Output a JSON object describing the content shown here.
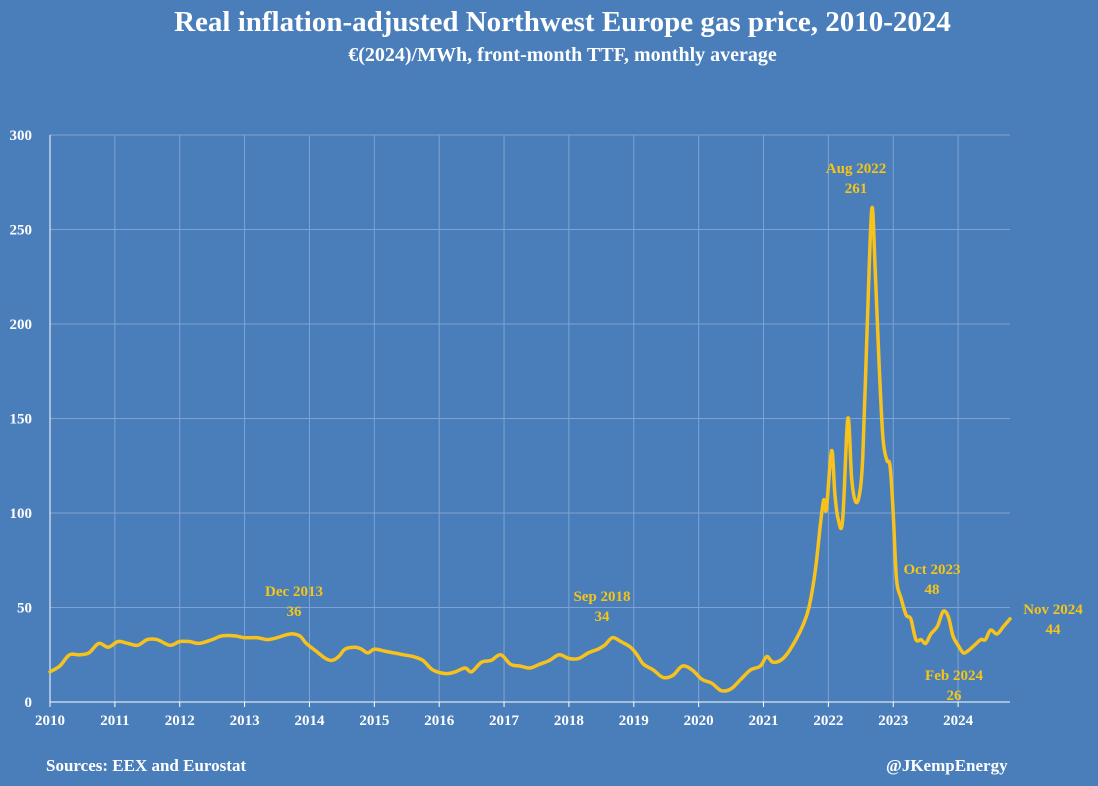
{
  "title": "Real inflation-adjusted Northwest Europe gas price, 2010-2024",
  "subtitle": "€(2024)/MWh, front-month TTF, monthly average",
  "footer": {
    "source": "Sources: EEX and Eurostat",
    "handle": "@JKempEnergy"
  },
  "colors": {
    "background": "#4a7ebb",
    "line": "#f7c21b",
    "annotation": "#f5c518",
    "grid": "#7ea3d2"
  },
  "chart_data": {
    "type": "line",
    "title": "Real inflation-adjusted Northwest Europe gas price, 2010-2024",
    "subtitle": "€(2024)/MWh, front-month TTF, monthly average",
    "xlabel": "",
    "ylabel": "",
    "ylim": [
      0,
      300
    ],
    "xlim": [
      2010,
      2024.8
    ],
    "grid": true,
    "x_ticks": [
      "2010",
      "2011",
      "2012",
      "2013",
      "2014",
      "2015",
      "2016",
      "2017",
      "2018",
      "2019",
      "2020",
      "2021",
      "2022",
      "2023",
      "2024"
    ],
    "y_ticks": [
      "0",
      "50",
      "100",
      "150",
      "200",
      "250",
      "300"
    ],
    "series": [
      {
        "points": [
          [
            2010.0,
            16
          ],
          [
            2010.15,
            19
          ],
          [
            2010.3,
            25
          ],
          [
            2010.45,
            25
          ],
          [
            2010.6,
            26
          ],
          [
            2010.75,
            31
          ],
          [
            2010.9,
            29
          ],
          [
            2011.05,
            32
          ],
          [
            2011.2,
            31
          ],
          [
            2011.35,
            30
          ],
          [
            2011.5,
            33
          ],
          [
            2011.65,
            33
          ],
          [
            2011.85,
            30
          ],
          [
            2012.0,
            32
          ],
          [
            2012.15,
            32
          ],
          [
            2012.3,
            31
          ],
          [
            2012.5,
            33
          ],
          [
            2012.65,
            35
          ],
          [
            2012.85,
            35
          ],
          [
            2013.0,
            34
          ],
          [
            2013.2,
            34
          ],
          [
            2013.35,
            33
          ],
          [
            2013.5,
            34
          ],
          [
            2013.7,
            36
          ],
          [
            2013.85,
            35
          ],
          [
            2013.95,
            31
          ],
          [
            2014.1,
            27
          ],
          [
            2014.25,
            23
          ],
          [
            2014.35,
            22
          ],
          [
            2014.45,
            24
          ],
          [
            2014.55,
            28
          ],
          [
            2014.7,
            29
          ],
          [
            2014.8,
            28
          ],
          [
            2014.9,
            26
          ],
          [
            2015.0,
            28
          ],
          [
            2015.15,
            27
          ],
          [
            2015.3,
            26
          ],
          [
            2015.45,
            25
          ],
          [
            2015.6,
            24
          ],
          [
            2015.75,
            22
          ],
          [
            2015.9,
            17
          ],
          [
            2016.1,
            15
          ],
          [
            2016.25,
            16
          ],
          [
            2016.4,
            18
          ],
          [
            2016.5,
            16
          ],
          [
            2016.65,
            21
          ],
          [
            2016.8,
            22
          ],
          [
            2016.95,
            25
          ],
          [
            2017.1,
            20
          ],
          [
            2017.25,
            19
          ],
          [
            2017.4,
            18
          ],
          [
            2017.55,
            20
          ],
          [
            2017.7,
            22
          ],
          [
            2017.85,
            25
          ],
          [
            2018.0,
            23
          ],
          [
            2018.15,
            23
          ],
          [
            2018.3,
            26
          ],
          [
            2018.45,
            28
          ],
          [
            2018.55,
            30
          ],
          [
            2018.67,
            34
          ],
          [
            2018.8,
            32
          ],
          [
            2018.95,
            29
          ],
          [
            2019.05,
            25
          ],
          [
            2019.15,
            20
          ],
          [
            2019.3,
            17
          ],
          [
            2019.45,
            13
          ],
          [
            2019.6,
            14
          ],
          [
            2019.75,
            19
          ],
          [
            2019.9,
            17
          ],
          [
            2020.05,
            12
          ],
          [
            2020.2,
            10
          ],
          [
            2020.35,
            6
          ],
          [
            2020.5,
            7
          ],
          [
            2020.65,
            12
          ],
          [
            2020.8,
            17
          ],
          [
            2020.95,
            19
          ],
          [
            2021.05,
            24
          ],
          [
            2021.15,
            21
          ],
          [
            2021.3,
            23
          ],
          [
            2021.45,
            30
          ],
          [
            2021.6,
            40
          ],
          [
            2021.7,
            50
          ],
          [
            2021.8,
            70
          ],
          [
            2021.88,
            95
          ],
          [
            2021.93,
            107
          ],
          [
            2021.97,
            102
          ],
          [
            2022.05,
            133
          ],
          [
            2022.1,
            110
          ],
          [
            2022.15,
            97
          ],
          [
            2022.22,
            96
          ],
          [
            2022.3,
            150
          ],
          [
            2022.36,
            118
          ],
          [
            2022.42,
            106
          ],
          [
            2022.48,
            110
          ],
          [
            2022.53,
            130
          ],
          [
            2022.6,
            200
          ],
          [
            2022.67,
            261
          ],
          [
            2022.72,
            230
          ],
          [
            2022.78,
            180
          ],
          [
            2022.84,
            140
          ],
          [
            2022.9,
            128
          ],
          [
            2022.95,
            125
          ],
          [
            2023.0,
            100
          ],
          [
            2023.05,
            65
          ],
          [
            2023.12,
            55
          ],
          [
            2023.2,
            46
          ],
          [
            2023.27,
            44
          ],
          [
            2023.35,
            33
          ],
          [
            2023.43,
            33
          ],
          [
            2023.5,
            31
          ],
          [
            2023.58,
            36
          ],
          [
            2023.68,
            40
          ],
          [
            2023.77,
            48
          ],
          [
            2023.85,
            45
          ],
          [
            2023.92,
            35
          ],
          [
            2024.0,
            30
          ],
          [
            2024.08,
            26
          ],
          [
            2024.15,
            27
          ],
          [
            2024.25,
            30
          ],
          [
            2024.35,
            33
          ],
          [
            2024.42,
            33
          ],
          [
            2024.5,
            38
          ],
          [
            2024.6,
            36
          ],
          [
            2024.7,
            40
          ],
          [
            2024.8,
            44
          ]
        ]
      }
    ],
    "annotations": [
      {
        "label": "Dec 2013",
        "value": "36",
        "x": 2013.92,
        "y": 36
      },
      {
        "label": "Sep 2018",
        "value": "34",
        "x": 2018.67,
        "y": 34
      },
      {
        "label": "Aug 2022",
        "value": "261",
        "x": 2022.58,
        "y": 261
      },
      {
        "label": "Oct 2023",
        "value": "48",
        "x": 2023.77,
        "y": 48
      },
      {
        "label": "Feb 2024",
        "value": "26",
        "x": 2024.08,
        "y": 26
      },
      {
        "label": "Nov 2024",
        "value": "44",
        "x": 2024.8,
        "y": 44
      }
    ]
  }
}
